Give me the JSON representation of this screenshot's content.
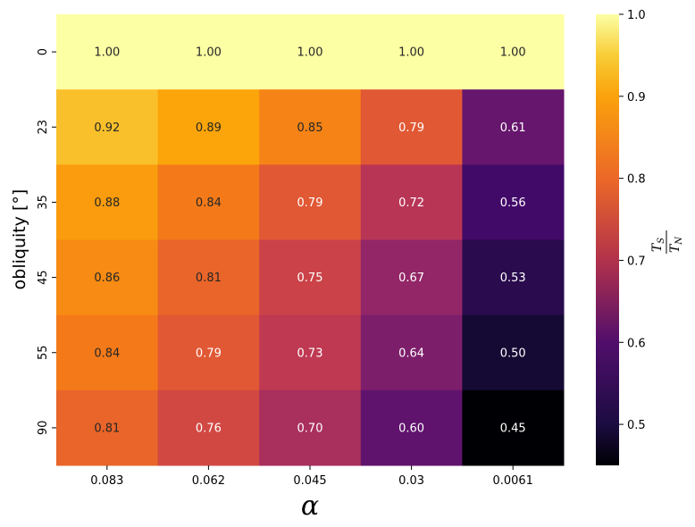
{
  "chart_data": {
    "type": "heatmap",
    "xlabel": "α",
    "ylabel": "obliquity [°]",
    "x_categories": [
      "0.083",
      "0.062",
      "0.045",
      "0.03",
      "0.0061"
    ],
    "y_categories": [
      "0",
      "23",
      "35",
      "45",
      "55",
      "90"
    ],
    "values": [
      [
        1.0,
        1.0,
        1.0,
        1.0,
        1.0
      ],
      [
        0.92,
        0.89,
        0.85,
        0.79,
        0.61
      ],
      [
        0.88,
        0.84,
        0.79,
        0.72,
        0.56
      ],
      [
        0.86,
        0.81,
        0.75,
        0.67,
        0.53
      ],
      [
        0.84,
        0.79,
        0.73,
        0.64,
        0.5
      ],
      [
        0.81,
        0.76,
        0.7,
        0.6,
        0.45
      ]
    ],
    "value_labels": [
      [
        "1.00",
        "1.00",
        "1.00",
        "1.00",
        "1.00"
      ],
      [
        "0.92",
        "0.89",
        "0.85",
        "0.79",
        "0.61"
      ],
      [
        "0.88",
        "0.84",
        "0.79",
        "0.72",
        "0.56"
      ],
      [
        "0.86",
        "0.81",
        "0.75",
        "0.67",
        "0.53"
      ],
      [
        "0.84",
        "0.79",
        "0.73",
        "0.64",
        "0.50"
      ],
      [
        "0.81",
        "0.76",
        "0.70",
        "0.60",
        "0.45"
      ]
    ],
    "colormap": "inferno",
    "vmin": 0.45,
    "vmax": 1.0,
    "colorbar": {
      "label_main": "T",
      "label_num_sub": "S",
      "label_den_sub": "N",
      "ticks": [
        0.5,
        0.6,
        0.7,
        0.8,
        0.9,
        1.0
      ],
      "tick_labels": [
        "0.5",
        "0.6",
        "0.7",
        "0.8",
        "0.9",
        "1.0"
      ]
    }
  }
}
